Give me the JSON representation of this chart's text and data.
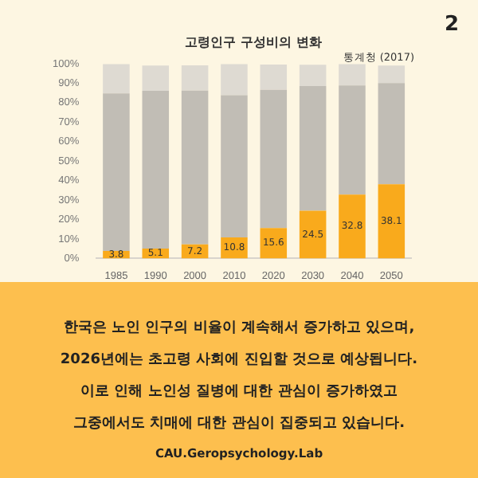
{
  "chart_data": {
    "type": "bar",
    "stacked": true,
    "title": "고령인구 구성비의 변화",
    "subtitle": "통계청 (2017)",
    "categories": [
      "1985",
      "1990",
      "2000",
      "2010",
      "2020",
      "2030",
      "2040",
      "2050"
    ],
    "series": [
      {
        "color": "#f9aa1c",
        "values": [
          3.8,
          5.1,
          7.2,
          10.8,
          15.6,
          24.5,
          32.8,
          38.1
        ],
        "value_labels": [
          "3.8",
          "5.1",
          "7.2",
          "10.8",
          "15.6",
          "24.5",
          "32.8",
          "38.1"
        ]
      },
      {
        "color": "#c1bdb5",
        "values": [
          81,
          81,
          79,
          73,
          71,
          64,
          56,
          52
        ]
      },
      {
        "color": "#dedad2",
        "values": [
          15,
          13,
          13,
          16,
          13,
          11,
          11,
          9
        ]
      }
    ],
    "ylim": [
      0,
      100
    ],
    "yticks": [
      {
        "value": 0,
        "label": "0%"
      },
      {
        "value": 10,
        "label": "10%"
      },
      {
        "value": 20,
        "label": "20%"
      },
      {
        "value": 30,
        "label": "30%"
      },
      {
        "value": 40,
        "label": "40%"
      },
      {
        "value": 50,
        "label": "50%"
      },
      {
        "value": 60,
        "label": "60%"
      },
      {
        "value": 70,
        "label": "70%"
      },
      {
        "value": 80,
        "label": "80%"
      },
      {
        "value": 90,
        "label": "90%"
      },
      {
        "value": 100,
        "label": "100%"
      }
    ],
    "grid": false,
    "legend": false,
    "annotations": [
      "2",
      "한국은 노인 인구의 비율이 계속해서 증가하고 있으며,",
      "2026년에는 초고령 사회에 진입할 것으로 예상됩니다.",
      "이로 인해 노인성 질병에 대한 관심이 증가하였고",
      "그중에서도 치매에 대한 관심이 집중되고 있습니다.",
      "CAU.Geropsychology.Lab"
    ]
  }
}
